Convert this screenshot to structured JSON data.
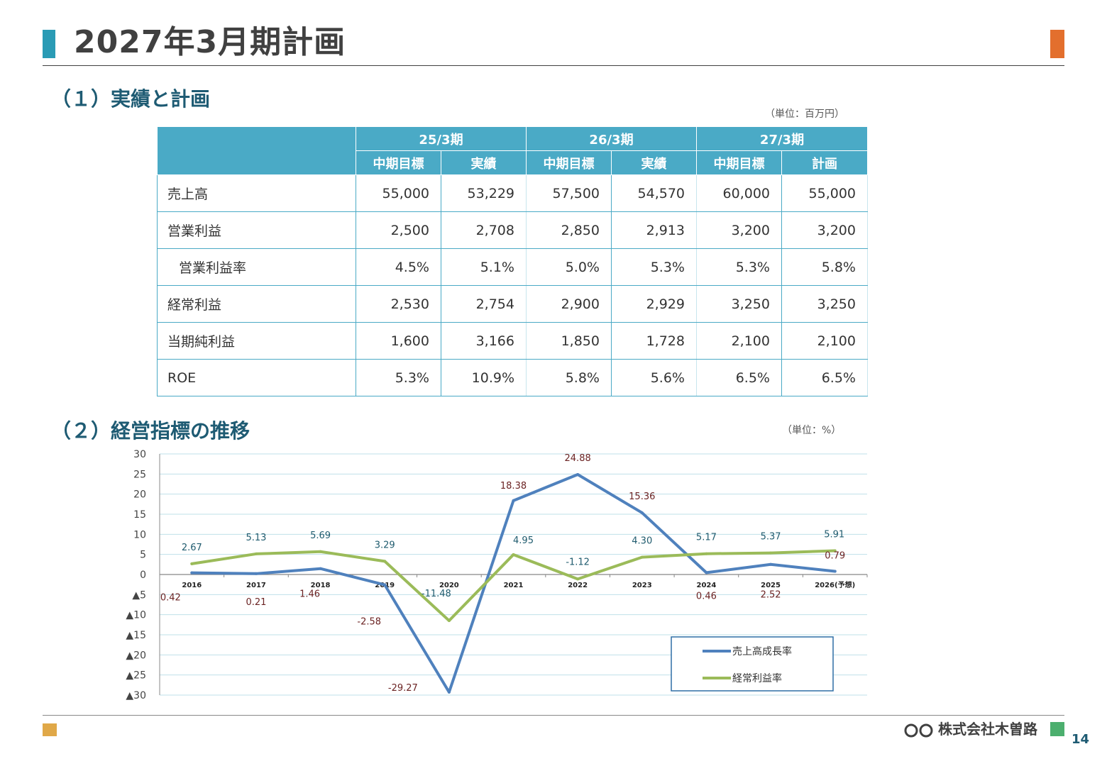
{
  "header": {
    "title": "2027年3月期計画"
  },
  "section1": {
    "title": "（１）実績と計画",
    "unit": "（単位：百万円）"
  },
  "table": {
    "periods": [
      "25/3期",
      "26/3期",
      "27/3期"
    ],
    "subheaders": [
      "中期目標",
      "実績",
      "中期目標",
      "実績",
      "中期目標",
      "計画"
    ],
    "rows": [
      {
        "label": "売上高",
        "values": [
          "55,000",
          "53,229",
          "57,500",
          "54,570",
          "60,000",
          "55,000"
        ]
      },
      {
        "label": "営業利益",
        "values": [
          "2,500",
          "2,708",
          "2,850",
          "2,913",
          "3,200",
          "3,200"
        ]
      },
      {
        "label": "営業利益率",
        "values": [
          "4.5%",
          "5.1%",
          "5.0%",
          "5.3%",
          "5.3%",
          "5.8%"
        ]
      },
      {
        "label": "経常利益",
        "values": [
          "2,530",
          "2,754",
          "2,900",
          "2,929",
          "3,250",
          "3,250"
        ]
      },
      {
        "label": "当期純利益",
        "values": [
          "1,600",
          "3,166",
          "1,850",
          "1,728",
          "2,100",
          "2,100"
        ]
      },
      {
        "label": "ROE",
        "values": [
          "5.3%",
          "10.9%",
          "5.8%",
          "5.6%",
          "6.5%",
          "6.5%"
        ]
      }
    ]
  },
  "section2": {
    "title": "（２）経営指標の推移",
    "unit": "（単位：%）"
  },
  "chart_data": {
    "type": "line",
    "categories": [
      "2016",
      "2017",
      "2018",
      "2019",
      "2020",
      "2021",
      "2022",
      "2023",
      "2024",
      "2025",
      "2026(予想)"
    ],
    "series": [
      {
        "name": "売上高成長率",
        "color": "#4f81bd",
        "values": [
          0.42,
          0.21,
          1.46,
          -2.58,
          -29.27,
          18.38,
          24.88,
          15.36,
          0.46,
          2.52,
          0.79
        ],
        "labels": [
          "0.42",
          "0.21",
          "1.46",
          "-2.58",
          "-29.27",
          "18.38",
          "24.88",
          "15.36",
          "0.46",
          "2.52",
          "0.79"
        ]
      },
      {
        "name": "経常利益率",
        "color": "#9bbb59",
        "values": [
          2.67,
          5.13,
          5.69,
          3.29,
          -11.48,
          4.95,
          -1.12,
          4.3,
          5.17,
          5.37,
          5.91
        ],
        "labels": [
          "2.67",
          "5.13",
          "5.69",
          "3.29",
          "-11.48",
          "4.95",
          "-1.12",
          "4.30",
          "5.17",
          "5.37",
          "5.91"
        ]
      }
    ],
    "ylim": [
      -30,
      30
    ],
    "yticks": [
      30,
      25,
      20,
      15,
      10,
      5,
      0,
      -5,
      -10,
      -15,
      -20,
      -25,
      -30
    ],
    "ytick_labels": [
      "30",
      "25",
      "20",
      "15",
      "10",
      "5",
      "0",
      "▲5",
      "▲10",
      "▲15",
      "▲20",
      "▲25",
      "▲30"
    ],
    "grid": true,
    "legend_position": "bottom-right"
  },
  "footer": {
    "company": "株式会社木曽路",
    "page": "14"
  }
}
